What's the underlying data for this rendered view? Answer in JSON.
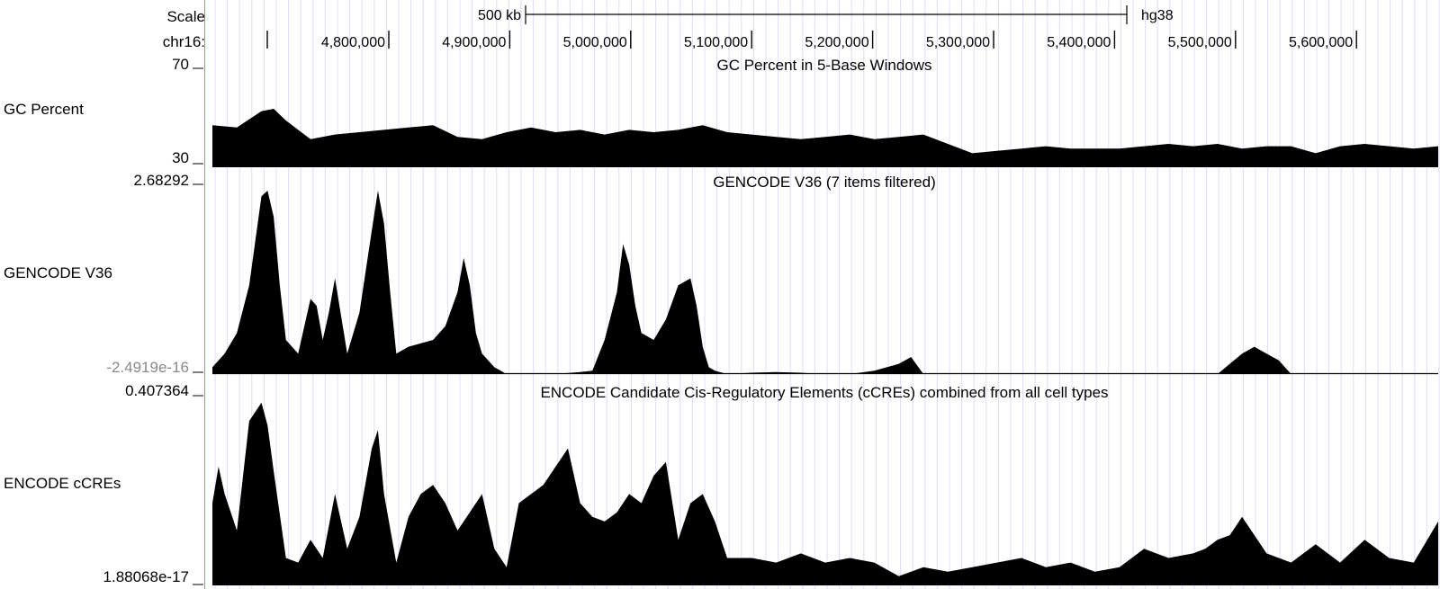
{
  "ruler": {
    "scale_label": "Scale",
    "scale_bar_label": "500 kb",
    "assembly": "hg38",
    "chrom_label": "chr16:",
    "positions": [
      "4,800,000",
      "4,900,000",
      "5,000,000",
      "5,100,000",
      "5,200,000",
      "5,300,000",
      "5,400,000",
      "5,500,000",
      "5,600,000"
    ]
  },
  "chart_data": [
    {
      "type": "area",
      "name": "GC Percent",
      "title": "GC Percent in 5-Base Windows",
      "ylim": [
        30,
        70
      ],
      "y_max_label": "70",
      "y_min_label": "30",
      "x_unit": "chr16 position (bp)",
      "x": [
        4700000,
        4720000,
        4740000,
        4750000,
        4760000,
        4780000,
        4800000,
        4820000,
        4840000,
        4860000,
        4880000,
        4900000,
        4920000,
        4940000,
        4960000,
        4980000,
        5000000,
        5020000,
        5040000,
        5060000,
        5080000,
        5100000,
        5120000,
        5140000,
        5160000,
        5180000,
        5200000,
        5220000,
        5240000,
        5260000,
        5280000,
        5300000,
        5320000,
        5340000,
        5360000,
        5380000,
        5400000,
        5420000,
        5440000,
        5460000,
        5480000,
        5500000,
        5520000,
        5540000,
        5560000,
        5580000,
        5600000,
        5620000,
        5640000,
        5660000,
        5680000,
        5700000
      ],
      "y": [
        48,
        47,
        54,
        55,
        50,
        42,
        44,
        45,
        46,
        47,
        48,
        43,
        42,
        45,
        47,
        45,
        46,
        44,
        46,
        45,
        46,
        48,
        45,
        44,
        43,
        42,
        43,
        44,
        42,
        43,
        44,
        40,
        36,
        37,
        38,
        39,
        38,
        38,
        38,
        39,
        40,
        39,
        40,
        38,
        39,
        39,
        36,
        39,
        40,
        39,
        38,
        39
      ]
    },
    {
      "type": "area",
      "name": "GENCODE V36",
      "title": "GENCODE V36 (7 items filtered)",
      "ylim": [
        -2.4919e-16,
        2.68292
      ],
      "y_max_label": "2.68292",
      "y_min_label": "-2.4919e-16",
      "x_unit": "chr16 position (bp)",
      "x": [
        4700000,
        4710000,
        4720000,
        4730000,
        4740000,
        4745000,
        4750000,
        4755000,
        4760000,
        4770000,
        4780000,
        4785000,
        4790000,
        4795000,
        4800000,
        4810000,
        4820000,
        4830000,
        4835000,
        4840000,
        4845000,
        4850000,
        4860000,
        4880000,
        4890000,
        4900000,
        4905000,
        4910000,
        4915000,
        4920000,
        4930000,
        4940000,
        4960000,
        4980000,
        5000000,
        5010000,
        5020000,
        5030000,
        5035000,
        5040000,
        5045000,
        5050000,
        5060000,
        5070000,
        5080000,
        5090000,
        5095000,
        5100000,
        5105000,
        5110000,
        5120000,
        5140000,
        5160000,
        5180000,
        5200000,
        5220000,
        5240000,
        5260000,
        5270000,
        5280000,
        5300000,
        5400000,
        5520000,
        5540000,
        5550000,
        5560000,
        5570000,
        5580000,
        5600000,
        5700000
      ],
      "y": [
        0.1,
        0.3,
        0.6,
        1.3,
        2.6,
        2.7,
        2.3,
        1.3,
        0.5,
        0.3,
        1.1,
        1.0,
        0.5,
        0.9,
        1.4,
        0.3,
        0.9,
        2.1,
        2.75,
        2.2,
        1.2,
        0.3,
        0.4,
        0.5,
        0.7,
        1.2,
        1.7,
        1.3,
        0.6,
        0.3,
        0.1,
        0.0,
        0.0,
        0.0,
        0.03,
        0.05,
        0.5,
        1.2,
        1.9,
        1.6,
        1.0,
        0.6,
        0.5,
        0.8,
        1.3,
        1.4,
        1.0,
        0.4,
        0.1,
        0.05,
        0.0,
        0.02,
        0.03,
        0.02,
        0.0,
        0.0,
        0.05,
        0.15,
        0.25,
        0.0,
        0.0,
        0.0,
        0.0,
        0.3,
        0.4,
        0.3,
        0.2,
        0.0,
        0.0,
        0.0
      ]
    },
    {
      "type": "area",
      "name": "ENCODE cCREs",
      "title": "ENCODE Candidate Cis-Regulatory Elements (cCREs) combined from all cell types",
      "ylim": [
        1.88068e-17,
        0.407364
      ],
      "y_max_label": "0.407364",
      "y_min_label": "1.88068e-17",
      "x_unit": "chr16 position (bp)",
      "x": [
        4700000,
        4705000,
        4710000,
        4720000,
        4730000,
        4740000,
        4745000,
        4750000,
        4760000,
        4770000,
        4780000,
        4790000,
        4800000,
        4810000,
        4820000,
        4830000,
        4835000,
        4840000,
        4850000,
        4860000,
        4870000,
        4880000,
        4890000,
        4900000,
        4910000,
        4920000,
        4930000,
        4940000,
        4950000,
        4960000,
        4970000,
        4980000,
        4990000,
        5000000,
        5010000,
        5020000,
        5030000,
        5035000,
        5040000,
        5050000,
        5060000,
        5070000,
        5080000,
        5090000,
        5100000,
        5110000,
        5120000,
        5140000,
        5160000,
        5180000,
        5200000,
        5220000,
        5240000,
        5260000,
        5280000,
        5300000,
        5320000,
        5340000,
        5360000,
        5380000,
        5400000,
        5420000,
        5440000,
        5460000,
        5480000,
        5500000,
        5510000,
        5520000,
        5530000,
        5540000,
        5560000,
        5580000,
        5600000,
        5620000,
        5640000,
        5660000,
        5680000,
        5700000
      ],
      "y": [
        0.18,
        0.26,
        0.2,
        0.12,
        0.36,
        0.4,
        0.35,
        0.25,
        0.06,
        0.05,
        0.1,
        0.06,
        0.2,
        0.08,
        0.15,
        0.3,
        0.34,
        0.2,
        0.05,
        0.15,
        0.2,
        0.22,
        0.18,
        0.12,
        0.16,
        0.2,
        0.08,
        0.04,
        0.18,
        0.2,
        0.22,
        0.26,
        0.3,
        0.18,
        0.15,
        0.14,
        0.16,
        0.18,
        0.2,
        0.18,
        0.24,
        0.27,
        0.1,
        0.18,
        0.2,
        0.14,
        0.06,
        0.06,
        0.05,
        0.07,
        0.05,
        0.06,
        0.05,
        0.02,
        0.04,
        0.03,
        0.04,
        0.05,
        0.06,
        0.04,
        0.05,
        0.03,
        0.04,
        0.08,
        0.06,
        0.07,
        0.08,
        0.1,
        0.11,
        0.15,
        0.07,
        0.05,
        0.09,
        0.05,
        0.1,
        0.06,
        0.05,
        0.14
      ]
    }
  ]
}
